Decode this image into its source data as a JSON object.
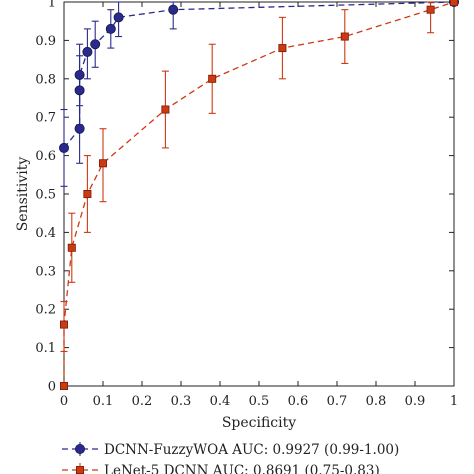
{
  "chart_data": {
    "type": "line",
    "title": "",
    "xlabel": "Specificity",
    "ylabel": "Sensitivity",
    "xlim": [
      0,
      1
    ],
    "ylim": [
      0,
      1
    ],
    "xticks": [
      "0",
      "0.1",
      "0.2",
      "0.3",
      "0.4",
      "0.5",
      "0.6",
      "0.7",
      "0.8",
      "0.9",
      "1"
    ],
    "yticks": [
      "0",
      "0.1",
      "0.2",
      "0.3",
      "0.4",
      "0.5",
      "0.6",
      "0.7",
      "0.8",
      "0.9",
      "1"
    ],
    "grid": false,
    "legend_position": "bottom",
    "series": [
      {
        "name": "DCNN-FuzzyWOA AUC: 0.9927 (0.99-1.00)",
        "color": "#2a2a8c",
        "marker": "circle",
        "line_style": "dashed",
        "points": [
          {
            "x": 0.0,
            "y": 0.62,
            "err_low": 0.52,
            "err_high": 0.72
          },
          {
            "x": 0.04,
            "y": 0.67,
            "err_low": 0.58,
            "err_high": 0.77
          },
          {
            "x": 0.04,
            "y": 0.77,
            "err_low": 0.68,
            "err_high": 0.86
          },
          {
            "x": 0.04,
            "y": 0.81,
            "err_low": 0.73,
            "err_high": 0.89
          },
          {
            "x": 0.06,
            "y": 0.87,
            "err_low": 0.8,
            "err_high": 0.93
          },
          {
            "x": 0.08,
            "y": 0.89,
            "err_low": 0.83,
            "err_high": 0.95
          },
          {
            "x": 0.12,
            "y": 0.93,
            "err_low": 0.88,
            "err_high": 0.98
          },
          {
            "x": 0.14,
            "y": 0.96,
            "err_low": 0.91,
            "err_high": 1.0
          },
          {
            "x": 0.28,
            "y": 0.98,
            "err_low": 0.93,
            "err_high": 1.0
          },
          {
            "x": 1.0,
            "y": 1.0,
            "err_low": 1.0,
            "err_high": 1.0
          }
        ]
      },
      {
        "name": "LeNet-5 DCNN AUC: 0.8691 (0.75-0.83)",
        "color": "#cc3a14",
        "marker": "square",
        "line_style": "dashed",
        "points": [
          {
            "x": 0.0,
            "y": 0.0,
            "err_low": 0.0,
            "err_high": 0.0
          },
          {
            "x": 0.0,
            "y": 0.16,
            "err_low": 0.09,
            "err_high": 0.22
          },
          {
            "x": 0.02,
            "y": 0.36,
            "err_low": 0.27,
            "err_high": 0.45
          },
          {
            "x": 0.06,
            "y": 0.5,
            "err_low": 0.4,
            "err_high": 0.6
          },
          {
            "x": 0.1,
            "y": 0.58,
            "err_low": 0.48,
            "err_high": 0.67
          },
          {
            "x": 0.26,
            "y": 0.72,
            "err_low": 0.62,
            "err_high": 0.82
          },
          {
            "x": 0.38,
            "y": 0.8,
            "err_low": 0.71,
            "err_high": 0.89
          },
          {
            "x": 0.56,
            "y": 0.88,
            "err_low": 0.8,
            "err_high": 0.96
          },
          {
            "x": 0.72,
            "y": 0.91,
            "err_low": 0.84,
            "err_high": 0.98
          },
          {
            "x": 0.94,
            "y": 0.98,
            "err_low": 0.92,
            "err_high": 1.0
          },
          {
            "x": 1.0,
            "y": 1.0,
            "err_low": 1.0,
            "err_high": 1.0
          }
        ]
      }
    ]
  }
}
